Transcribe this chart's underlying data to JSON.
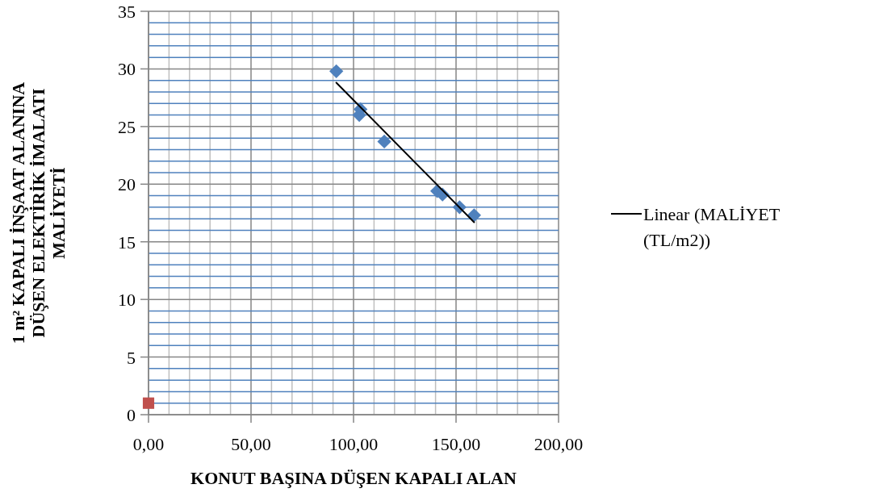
{
  "chart_data": {
    "type": "scatter",
    "xlabel": "KONUT BAŞINA DÜŞEN KAPALI ALAN",
    "ylabel": "1 m² KAPALI İNŞAAT ALANINA DÜŞEN ELEKTİRİK İMALATI MALİYETİ",
    "xlim": [
      0,
      200
    ],
    "ylim": [
      0,
      35
    ],
    "xticks": [
      {
        "value": 0,
        "label": "0,00"
      },
      {
        "value": 10,
        "label": null
      },
      {
        "value": 20,
        "label": null
      },
      {
        "value": 30,
        "label": null
      },
      {
        "value": 40,
        "label": null
      },
      {
        "value": 50,
        "label": "50,00"
      },
      {
        "value": 60,
        "label": null
      },
      {
        "value": 70,
        "label": null
      },
      {
        "value": 80,
        "label": null
      },
      {
        "value": 90,
        "label": null
      },
      {
        "value": 100,
        "label": "100,00"
      },
      {
        "value": 110,
        "label": null
      },
      {
        "value": 120,
        "label": null
      },
      {
        "value": 130,
        "label": null
      },
      {
        "value": 140,
        "label": null
      },
      {
        "value": 150,
        "label": "150,00"
      },
      {
        "value": 160,
        "label": null
      },
      {
        "value": 170,
        "label": null
      },
      {
        "value": 180,
        "label": null
      },
      {
        "value": 190,
        "label": null
      },
      {
        "value": 200,
        "label": "200,00"
      }
    ],
    "yticks": [
      0,
      {
        "value": 1,
        "label": null
      },
      {
        "value": 2,
        "label": null
      },
      {
        "value": 3,
        "label": null
      },
      {
        "value": 4,
        "label": null
      },
      5,
      {
        "value": 6,
        "label": null
      },
      {
        "value": 7,
        "label": null
      },
      {
        "value": 8,
        "label": null
      },
      {
        "value": 9,
        "label": null
      },
      10,
      {
        "value": 11,
        "label": null
      },
      {
        "value": 12,
        "label": null
      },
      {
        "value": 13,
        "label": null
      },
      {
        "value": 14,
        "label": null
      },
      15,
      {
        "value": 16,
        "label": null
      },
      {
        "value": 17,
        "label": null
      },
      {
        "value": 18,
        "label": null
      },
      {
        "value": 19,
        "label": null
      },
      20,
      {
        "value": 21,
        "label": null
      },
      {
        "value": 22,
        "label": null
      },
      {
        "value": 23,
        "label": null
      },
      {
        "value": 24,
        "label": null
      },
      25,
      {
        "value": 26,
        "label": null
      },
      {
        "value": 27,
        "label": null
      },
      {
        "value": 28,
        "label": null
      },
      {
        "value": 29,
        "label": null
      },
      30,
      {
        "value": 31,
        "label": null
      },
      {
        "value": 32,
        "label": null
      },
      {
        "value": 33,
        "label": null
      },
      {
        "value": 34,
        "label": null
      },
      35
    ],
    "grid": true,
    "legend": "right",
    "series": [
      {
        "color": "#4f81bd",
        "marker": "diamond",
        "x": [
          91.6,
          103.4,
          102.8,
          115,
          140.8,
          143.4,
          151.7,
          158.8
        ],
        "values": [
          29.8,
          26.5,
          26.0,
          23.7,
          19.4,
          19.1,
          18.0,
          17.3
        ]
      },
      {
        "color": "#c0504d",
        "marker": "square",
        "x": [
          0
        ],
        "values": [
          1
        ]
      },
      {
        "type": "line",
        "name": "Linear (MALİYET (TL/m2))",
        "color": "#000000",
        "marker": "none",
        "x": [
          91.6,
          158.8
        ],
        "values": [
          28.8,
          16.7
        ]
      }
    ]
  }
}
